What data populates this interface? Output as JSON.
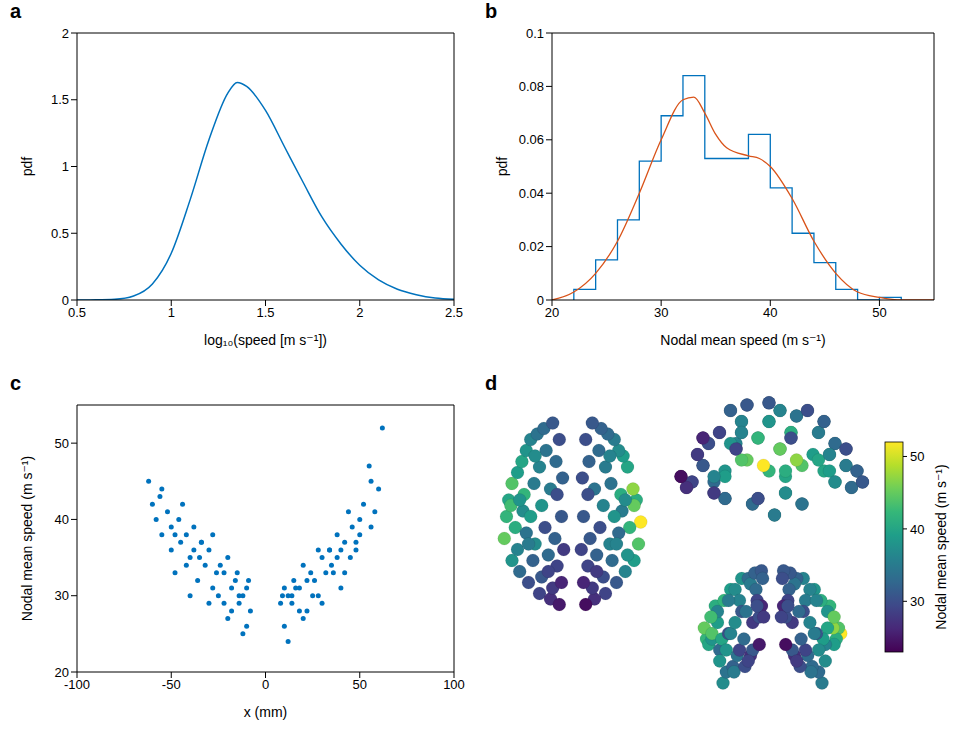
{
  "chart_data": [
    {
      "panel": "a",
      "type": "line",
      "xlabel": "log₁₀(speed [m s⁻¹])",
      "ylabel": "pdf",
      "color": "#0072bd",
      "x": [
        0.5,
        0.6,
        0.7,
        0.8,
        0.9,
        1.0,
        1.1,
        1.2,
        1.3,
        1.35,
        1.4,
        1.5,
        1.6,
        1.7,
        1.8,
        1.9,
        2.0,
        2.1,
        2.2,
        2.3,
        2.4,
        2.5
      ],
      "values": [
        0,
        0.001,
        0.005,
        0.03,
        0.12,
        0.35,
        0.75,
        1.2,
        1.55,
        1.63,
        1.6,
        1.42,
        1.15,
        0.88,
        0.62,
        0.42,
        0.26,
        0.15,
        0.08,
        0.04,
        0.015,
        0.005
      ],
      "xlim": [
        0.5,
        2.5
      ],
      "xticks": [
        0.5,
        1,
        1.5,
        2,
        2.5
      ],
      "ylim": [
        0,
        2
      ],
      "yticks": [
        0,
        0.5,
        1,
        1.5,
        2
      ]
    },
    {
      "panel": "b",
      "type": "histogram",
      "xlabel": "Nodal mean speed (m s⁻¹)",
      "ylabel": "pdf",
      "series": [
        {
          "type": "histogram",
          "color": "#0072bd",
          "bins": [
            22,
            24,
            26,
            28,
            30,
            32,
            34,
            36,
            38,
            40,
            42,
            44,
            46,
            48,
            50,
            52
          ],
          "values": [
            0.004,
            0.015,
            0.03,
            0.052,
            0.069,
            0.084,
            0.053,
            0.053,
            0.062,
            0.042,
            0.025,
            0.014,
            0.004,
            0,
            0.001
          ]
        },
        {
          "type": "line",
          "color": "#d95319",
          "x": [
            20,
            22,
            24,
            26,
            28,
            30,
            32,
            33,
            34,
            35,
            36,
            38,
            39,
            40,
            42,
            44,
            46,
            48,
            50,
            52,
            55
          ],
          "values": [
            0,
            0.003,
            0.01,
            0.022,
            0.04,
            0.06,
            0.075,
            0.076,
            0.07,
            0.062,
            0.057,
            0.054,
            0.053,
            0.05,
            0.038,
            0.022,
            0.01,
            0.003,
            0.001,
            0,
            0
          ]
        }
      ],
      "xlim": [
        20,
        55
      ],
      "xticks": [
        20,
        30,
        40,
        50
      ],
      "ylim": [
        0,
        0.1
      ],
      "yticks": [
        0,
        0.02,
        0.04,
        0.06,
        0.08,
        0.1
      ]
    },
    {
      "panel": "c",
      "type": "scatter",
      "xlabel": "x (mm)",
      "ylabel": "Nodal mean speed (m s⁻¹)",
      "color": "#0072bd",
      "x": [
        -60,
        -62,
        -58,
        -55,
        -55,
        -52,
        -50,
        -50,
        -48,
        -46,
        -45,
        -44,
        -42,
        -42,
        -40,
        -38,
        -38,
        -36,
        -35,
        -34,
        -32,
        -30,
        -30,
        -28,
        -28,
        -26,
        -25,
        -24,
        -22,
        -20,
        -20,
        -18,
        -18,
        -16,
        -15,
        -14,
        -12,
        -12,
        -10,
        -10,
        -9,
        -8,
        -56,
        -48,
        -40,
        -34,
        -22,
        -14,
        62,
        60,
        58,
        56,
        55,
        52,
        50,
        50,
        48,
        46,
        45,
        44,
        42,
        42,
        40,
        38,
        38,
        36,
        35,
        34,
        32,
        30,
        30,
        28,
        28,
        26,
        25,
        24,
        22,
        20,
        20,
        18,
        18,
        16,
        15,
        14,
        12,
        12,
        10,
        10,
        9,
        8,
        56,
        48,
        40,
        34,
        22,
        14
      ],
      "values": [
        42,
        45,
        40,
        38,
        44,
        41,
        39,
        36,
        33,
        40,
        37,
        42,
        34,
        38,
        30,
        39,
        36,
        32,
        35,
        37,
        34,
        29,
        36,
        38,
        31,
        33,
        30,
        34,
        33,
        27,
        35,
        28,
        31,
        32,
        33,
        29,
        25,
        30,
        31,
        26,
        32,
        28,
        43,
        38,
        35,
        37,
        29,
        30,
        52,
        44,
        41,
        39,
        47,
        42,
        40,
        38,
        36,
        39,
        35,
        41,
        33,
        37,
        31,
        38,
        35,
        33,
        34,
        36,
        33,
        29,
        35,
        36,
        30,
        32,
        30,
        33,
        32,
        27,
        34,
        28,
        31,
        31,
        32,
        29,
        24,
        30,
        31,
        26,
        30,
        29,
        45,
        37,
        36,
        36,
        28,
        30
      ],
      "xlim": [
        -100,
        100
      ],
      "xticks": [
        -100,
        -50,
        0,
        50,
        100
      ],
      "ylim": [
        20,
        55
      ],
      "yticks": [
        20,
        30,
        40,
        50
      ]
    },
    {
      "panel": "d",
      "type": "node_map",
      "tick_labels": false,
      "nodes": {
        "x": [
          -60,
          -62,
          -58,
          -55,
          -55,
          -52,
          -50,
          -50,
          -48,
          -46,
          -45,
          -44,
          -42,
          -42,
          -40,
          -38,
          -38,
          -36,
          -35,
          -34,
          -32,
          -30,
          -30,
          -28,
          -28,
          -26,
          -25,
          -24,
          -22,
          -20,
          -20,
          -18,
          -18,
          -16,
          -15,
          -14,
          -12,
          -12,
          -10,
          -10,
          -9,
          -8,
          -56,
          -48,
          -40,
          -34,
          -22,
          -14,
          62,
          60,
          58,
          56,
          55,
          52,
          50,
          50,
          48,
          46,
          45,
          44,
          42,
          42,
          40,
          38,
          38,
          36,
          35,
          34,
          32,
          30,
          30,
          28,
          28,
          26,
          25,
          24,
          22,
          20,
          20,
          18,
          18,
          16,
          15,
          14,
          12,
          12,
          10,
          10,
          9,
          8,
          56,
          48,
          40,
          34,
          22,
          14
        ],
        "y": [
          -20,
          -40,
          -5,
          -60,
          10,
          -30,
          20,
          -50,
          -70,
          30,
          -15,
          0,
          -35,
          40,
          -80,
          -20,
          50,
          -60,
          10,
          -45,
          55,
          -90,
          25,
          -10,
          -75,
          60,
          -30,
          40,
          -55,
          -95,
          5,
          -85,
          65,
          -40,
          30,
          -65,
          -100,
          50,
          -20,
          -80,
          15,
          -50,
          -10,
          -5,
          -45,
          35,
          -70,
          0,
          -25,
          -45,
          -5,
          -60,
          5,
          -30,
          25,
          -55,
          -70,
          35,
          -15,
          0,
          -35,
          40,
          -80,
          -20,
          50,
          -60,
          10,
          -45,
          55,
          -90,
          25,
          -10,
          -75,
          60,
          -30,
          40,
          -55,
          -95,
          5,
          -85,
          65,
          -40,
          30,
          -65,
          -100,
          50,
          -20,
          -80,
          15,
          -50,
          -10,
          -5,
          -45,
          35,
          -70,
          0
        ],
        "z": [
          10,
          20,
          5,
          10,
          15,
          40,
          25,
          35,
          0,
          10,
          -30,
          45,
          -20,
          0,
          15,
          55,
          15,
          -15,
          -20,
          55,
          -5,
          0,
          45,
          65,
          35,
          10,
          -15,
          35,
          65,
          -5,
          60,
          25,
          0,
          70,
          55,
          45,
          5,
          30,
          72,
          40,
          65,
          30,
          30,
          -10,
          45,
          25,
          -10,
          40,
          15,
          20,
          10,
          5,
          20,
          40,
          20,
          35,
          5,
          10,
          -30,
          45,
          -20,
          0,
          15,
          55,
          15,
          -15,
          -20,
          55,
          -5,
          0,
          45,
          65,
          35,
          10,
          -15,
          35,
          65,
          -5,
          60,
          25,
          0,
          70,
          55,
          45,
          5,
          30,
          72,
          40,
          65,
          30,
          30,
          -10,
          45,
          25,
          -10,
          40
        ],
        "values": [
          42,
          45,
          40,
          38,
          44,
          41,
          39,
          36,
          33,
          40,
          37,
          42,
          34,
          38,
          30,
          39,
          36,
          32,
          35,
          37,
          34,
          29,
          36,
          38,
          31,
          33,
          30,
          34,
          33,
          27,
          35,
          28,
          31,
          32,
          33,
          29,
          25,
          30,
          31,
          26,
          32,
          28,
          43,
          38,
          35,
          37,
          29,
          30,
          52,
          44,
          41,
          39,
          47,
          42,
          40,
          38,
          36,
          39,
          35,
          41,
          33,
          37,
          31,
          38,
          35,
          33,
          34,
          36,
          33,
          29,
          35,
          36,
          30,
          32,
          30,
          33,
          32,
          27,
          34,
          28,
          31,
          31,
          32,
          29,
          24,
          30,
          31,
          26,
          30,
          29,
          45,
          37,
          36,
          36,
          28,
          30
        ]
      },
      "xlim": [
        -75,
        75
      ],
      "ylim": [
        -110,
        75
      ],
      "zlim": [
        -50,
        80
      ],
      "colorbar": {
        "range": [
          23,
          52
        ],
        "ticks": [
          30,
          40,
          50
        ],
        "label": "Nodal mean speed (m s⁻¹)"
      }
    }
  ]
}
